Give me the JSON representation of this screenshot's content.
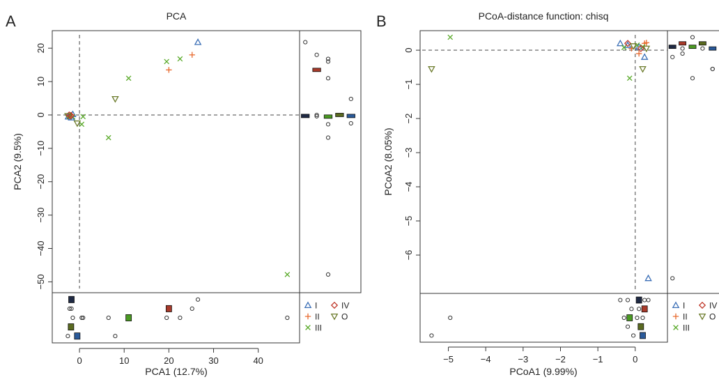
{
  "figure": {
    "panel_a_label": "A",
    "panel_b_label": "B"
  },
  "legend_entries": [
    {
      "label": "I",
      "marker": "triangle",
      "color": "#3b6fb6"
    },
    {
      "label": "IV",
      "marker": "diamond",
      "color": "#c0392b"
    },
    {
      "label": "II",
      "marker": "plus",
      "color": "#e8692d"
    },
    {
      "label": "O",
      "marker": "inv-triangle",
      "color": "#6b7a2a"
    },
    {
      "label": "III",
      "marker": "cross",
      "color": "#5aaa2a"
    }
  ],
  "box_colors": [
    "#1f2a44",
    "#a83a2a",
    "#4a9a22",
    "#5a6a20",
    "#2a5a9a"
  ],
  "chart_data": [
    {
      "type": "scatter",
      "title": "PCA",
      "xlabel": "PCA1 (12.7%)",
      "ylabel": "PCA2 (9.5%)",
      "xlim": [
        -5,
        48
      ],
      "ylim": [
        -52,
        24
      ],
      "xticks": [
        0,
        10,
        20,
        30,
        40
      ],
      "yticks": [
        -50,
        -40,
        -30,
        -20,
        -10,
        0,
        10,
        20
      ],
      "reference_lines": {
        "x": 0,
        "y": 0
      },
      "series": [
        {
          "name": "I",
          "points": [
            [
              26.5,
              21.8
            ],
            [
              -2.0,
              -0.3
            ],
            [
              -1.5,
              0.2
            ],
            [
              -2.5,
              -0.5
            ],
            [
              -1.8,
              -0.8
            ]
          ]
        },
        {
          "name": "II",
          "points": [
            [
              25.2,
              18.0
            ],
            [
              20.0,
              13.5
            ],
            [
              -1.8,
              0.0
            ],
            [
              -2.2,
              -0.4
            ]
          ]
        },
        {
          "name": "III",
          "points": [
            [
              22.5,
              16.8
            ],
            [
              19.5,
              16.0
            ],
            [
              11.0,
              11.0
            ],
            [
              6.5,
              -6.8
            ],
            [
              46.5,
              -47.8
            ],
            [
              0.8,
              -0.5
            ],
            [
              0.5,
              -2.8
            ],
            [
              -1.5,
              -0.6
            ]
          ]
        },
        {
          "name": "IV",
          "points": [
            [
              -2.3,
              0.0
            ],
            [
              -1.9,
              -0.2
            ]
          ]
        },
        {
          "name": "O",
          "points": [
            [
              8.0,
              4.8
            ],
            [
              -0.5,
              -2.5
            ],
            [
              -2.6,
              -0.3
            ]
          ]
        }
      ]
    },
    {
      "type": "scatter",
      "title": "PCoA-distance function: chisq",
      "xlabel": "PCoA1 (9.99%)",
      "ylabel": "PCoA2 (8.05%)",
      "xlim": [
        -5.7,
        0.75
      ],
      "ylim": [
        -7.0,
        0.45
      ],
      "xticks": [
        -5,
        -4,
        -3,
        -2,
        -1,
        0
      ],
      "yticks": [
        -6,
        -5,
        -4,
        -3,
        -2,
        -1,
        0
      ],
      "reference_lines": {
        "x": 0,
        "y": 0
      },
      "series": [
        {
          "name": "I",
          "points": [
            [
              -0.4,
              0.2
            ],
            [
              0.35,
              -6.68
            ],
            [
              0.25,
              -0.2
            ],
            [
              0.1,
              0.1
            ],
            [
              -0.2,
              0.15
            ]
          ]
        },
        {
          "name": "II",
          "points": [
            [
              0.25,
              0.2
            ],
            [
              0.1,
              -0.1
            ],
            [
              -0.1,
              0.05
            ],
            [
              0.3,
              0.22
            ]
          ]
        },
        {
          "name": "III",
          "points": [
            [
              -4.95,
              0.38
            ],
            [
              -0.15,
              -0.82
            ],
            [
              0.2,
              0.1
            ],
            [
              -0.3,
              0.08
            ],
            [
              0.05,
              0.15
            ]
          ]
        },
        {
          "name": "IV",
          "points": [
            [
              -0.2,
              0.2
            ],
            [
              0.15,
              0.05
            ]
          ]
        },
        {
          "name": "O",
          "points": [
            [
              -5.45,
              -0.55
            ],
            [
              0.2,
              -0.55
            ],
            [
              0.3,
              0.05
            ],
            [
              -0.05,
              0.12
            ]
          ]
        }
      ]
    }
  ]
}
